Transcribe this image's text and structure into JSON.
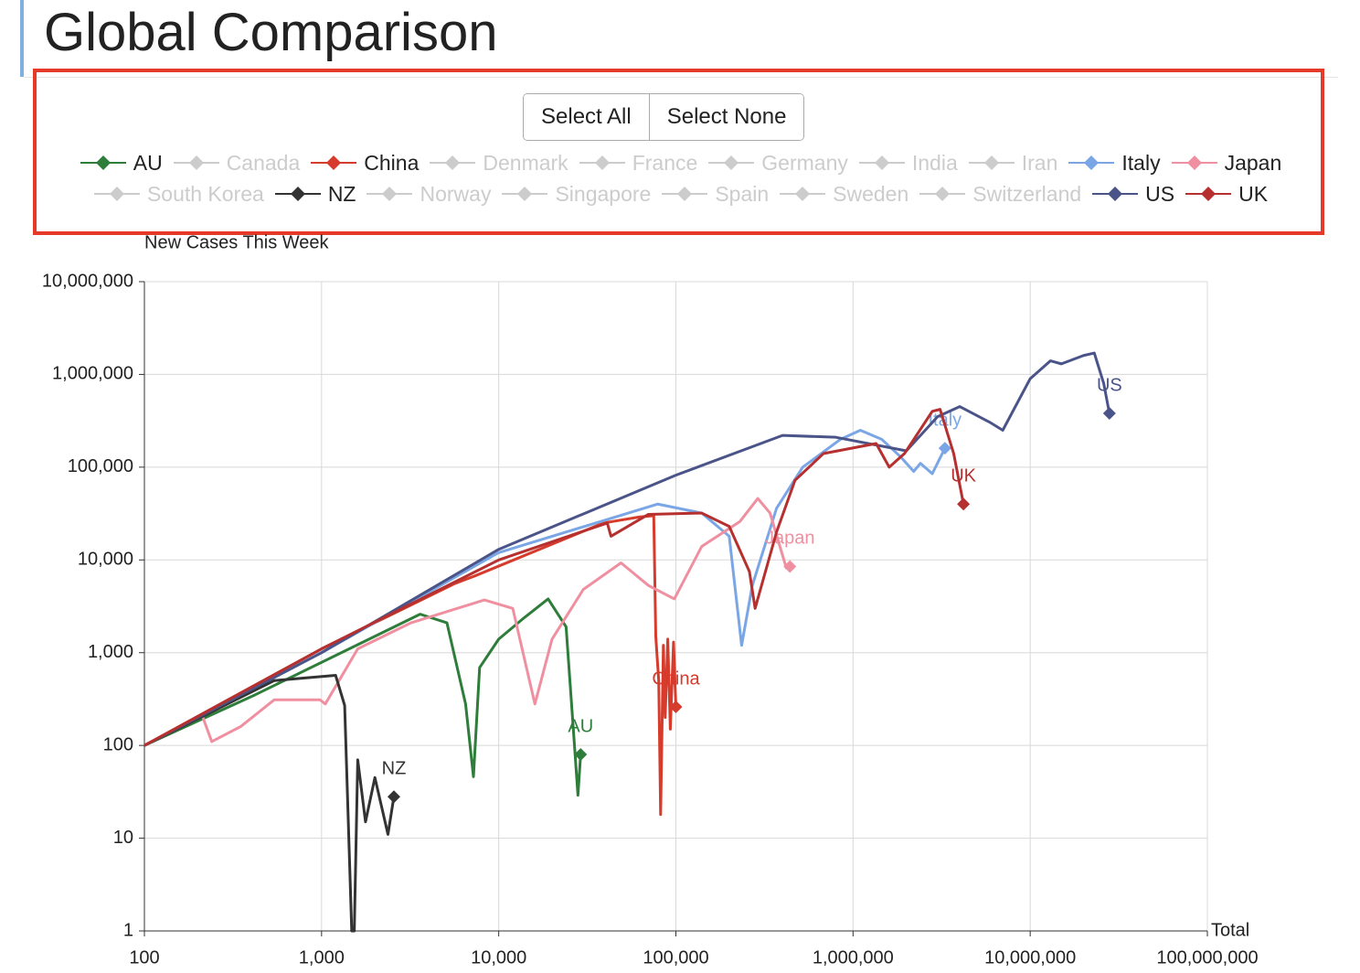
{
  "page_title": "Global Comparison",
  "buttons": [
    "Select All",
    "Select None"
  ],
  "chart_data": {
    "type": "line",
    "y_label": "New Cases This Week",
    "x_label": "Total",
    "log_x": true,
    "log_y": true,
    "grid": true,
    "xlim": [
      100,
      100000000
    ],
    "ylim": [
      1,
      10000000
    ],
    "xticks": [
      100,
      {
        "value": 1000,
        "label": "1,000"
      },
      {
        "value": 10000,
        "label": "10,000"
      },
      {
        "value": 100000,
        "label": "100,000"
      },
      {
        "value": 1000000,
        "label": "1,000,000"
      },
      {
        "value": 10000000,
        "label": "10,000,000"
      },
      {
        "value": 100000000,
        "label": "100,000,000"
      }
    ],
    "yticks": [
      1,
      10,
      100,
      {
        "value": 1000,
        "label": "1,000"
      },
      {
        "value": 10000,
        "label": "10,000"
      },
      {
        "value": 100000,
        "label": "100,000"
      },
      {
        "value": 1000000,
        "label": "1,000,000"
      },
      {
        "value": 10000000,
        "label": "10,000,000"
      }
    ],
    "series": [
      {
        "name": "AU",
        "color": "#2e7d3a",
        "visible": true,
        "x": [
          100,
          420,
          3600,
          5100,
          6500,
          7200,
          7800,
          10000,
          14000,
          19000,
          24000,
          26000,
          28000,
          29000
        ],
        "values": [
          100,
          350,
          2600,
          2100,
          280,
          46,
          690,
          1400,
          2400,
          3800,
          1900,
          220,
          29,
          80
        ]
      },
      {
        "name": "Canada",
        "color": "#cccccc",
        "visible": false
      },
      {
        "name": "China",
        "color": "#d63b2b",
        "visible": true,
        "x": [
          100,
          1000,
          5700,
          7300,
          39000,
          62000,
          75000,
          77000,
          80000,
          82000,
          85000,
          87000,
          90000,
          93000,
          97000,
          100000
        ],
        "values": [
          100,
          1100,
          5600,
          6700,
          25000,
          29000,
          30000,
          1500,
          500,
          18,
          1200,
          200,
          1400,
          150,
          1300,
          260
        ]
      },
      {
        "name": "Denmark",
        "color": "#cccccc",
        "visible": false
      },
      {
        "name": "France",
        "color": "#cccccc",
        "visible": false
      },
      {
        "name": "Germany",
        "color": "#cccccc",
        "visible": false
      },
      {
        "name": "India",
        "color": "#cccccc",
        "visible": false
      },
      {
        "name": "Iran",
        "color": "#cccccc",
        "visible": false
      },
      {
        "name": "Italy",
        "color": "#7aa6e6",
        "visible": true,
        "x": [
          100,
          1000,
          10000,
          79000,
          140000,
          200000,
          235000,
          270000,
          370000,
          520000,
          850000,
          1100000,
          1450000,
          1850000,
          2200000,
          2400000,
          2800000,
          3300000
        ],
        "values": [
          100,
          1000,
          12000,
          40000,
          32000,
          18000,
          1200,
          5300,
          36000,
          100000,
          200000,
          250000,
          200000,
          130000,
          90000,
          110000,
          85000,
          160000
        ]
      },
      {
        "name": "Japan",
        "color": "#ef8fa0",
        "visible": true,
        "x": [
          210,
          240,
          350,
          540,
          980,
          1050,
          1600,
          3200,
          8300,
          12000,
          16000,
          20000,
          30000,
          49000,
          70000,
          98000,
          140000,
          230000,
          290000,
          340000,
          420000,
          440000
        ],
        "values": [
          220,
          110,
          160,
          310,
          310,
          280,
          1100,
          2100,
          3700,
          3000,
          280,
          1400,
          4800,
          9300,
          5300,
          3800,
          14000,
          26000,
          46000,
          32000,
          8200,
          8500
        ]
      },
      {
        "name": "South Korea",
        "color": "#cccccc",
        "visible": false
      },
      {
        "name": "NZ",
        "color": "#333333",
        "visible": true,
        "x": [
          100,
          540,
          1200,
          1350,
          1480,
          1530,
          1600,
          1770,
          2000,
          2370,
          2560
        ],
        "values": [
          100,
          500,
          570,
          270,
          1,
          1,
          70,
          15,
          45,
          11,
          28
        ]
      },
      {
        "name": "Norway",
        "color": "#cccccc",
        "visible": false
      },
      {
        "name": "Singapore",
        "color": "#cccccc",
        "visible": false
      },
      {
        "name": "Spain",
        "color": "#cccccc",
        "visible": false
      },
      {
        "name": "Sweden",
        "color": "#cccccc",
        "visible": false
      },
      {
        "name": "Switzerland",
        "color": "#cccccc",
        "visible": false
      },
      {
        "name": "US",
        "color": "#4b5488",
        "visible": true,
        "x": [
          100,
          1000,
          10000,
          100000,
          400000,
          800000,
          2000000,
          3000000,
          4000000,
          6000000,
          7000000,
          10000000,
          13000000,
          15000000,
          20000000,
          23000000,
          26000000,
          28000000
        ],
        "values": [
          100,
          1000,
          13000,
          82000,
          220000,
          210000,
          150000,
          350000,
          450000,
          300000,
          250000,
          900000,
          1400000,
          1300000,
          1600000,
          1700000,
          800000,
          380000
        ]
      },
      {
        "name": "UK",
        "color": "#b5302e",
        "visible": true,
        "x": [
          100,
          1000,
          10000,
          41000,
          43000,
          70000,
          140000,
          200000,
          260000,
          280000,
          370000,
          470000,
          680000,
          1350000,
          1600000,
          1950000,
          2800000,
          3100000,
          3700000,
          4200000
        ],
        "values": [
          100,
          1100,
          10000,
          25000,
          18000,
          31000,
          32000,
          23000,
          7500,
          3000,
          20000,
          72000,
          140000,
          180000,
          100000,
          140000,
          400000,
          420000,
          140000,
          40000
        ]
      }
    ]
  }
}
